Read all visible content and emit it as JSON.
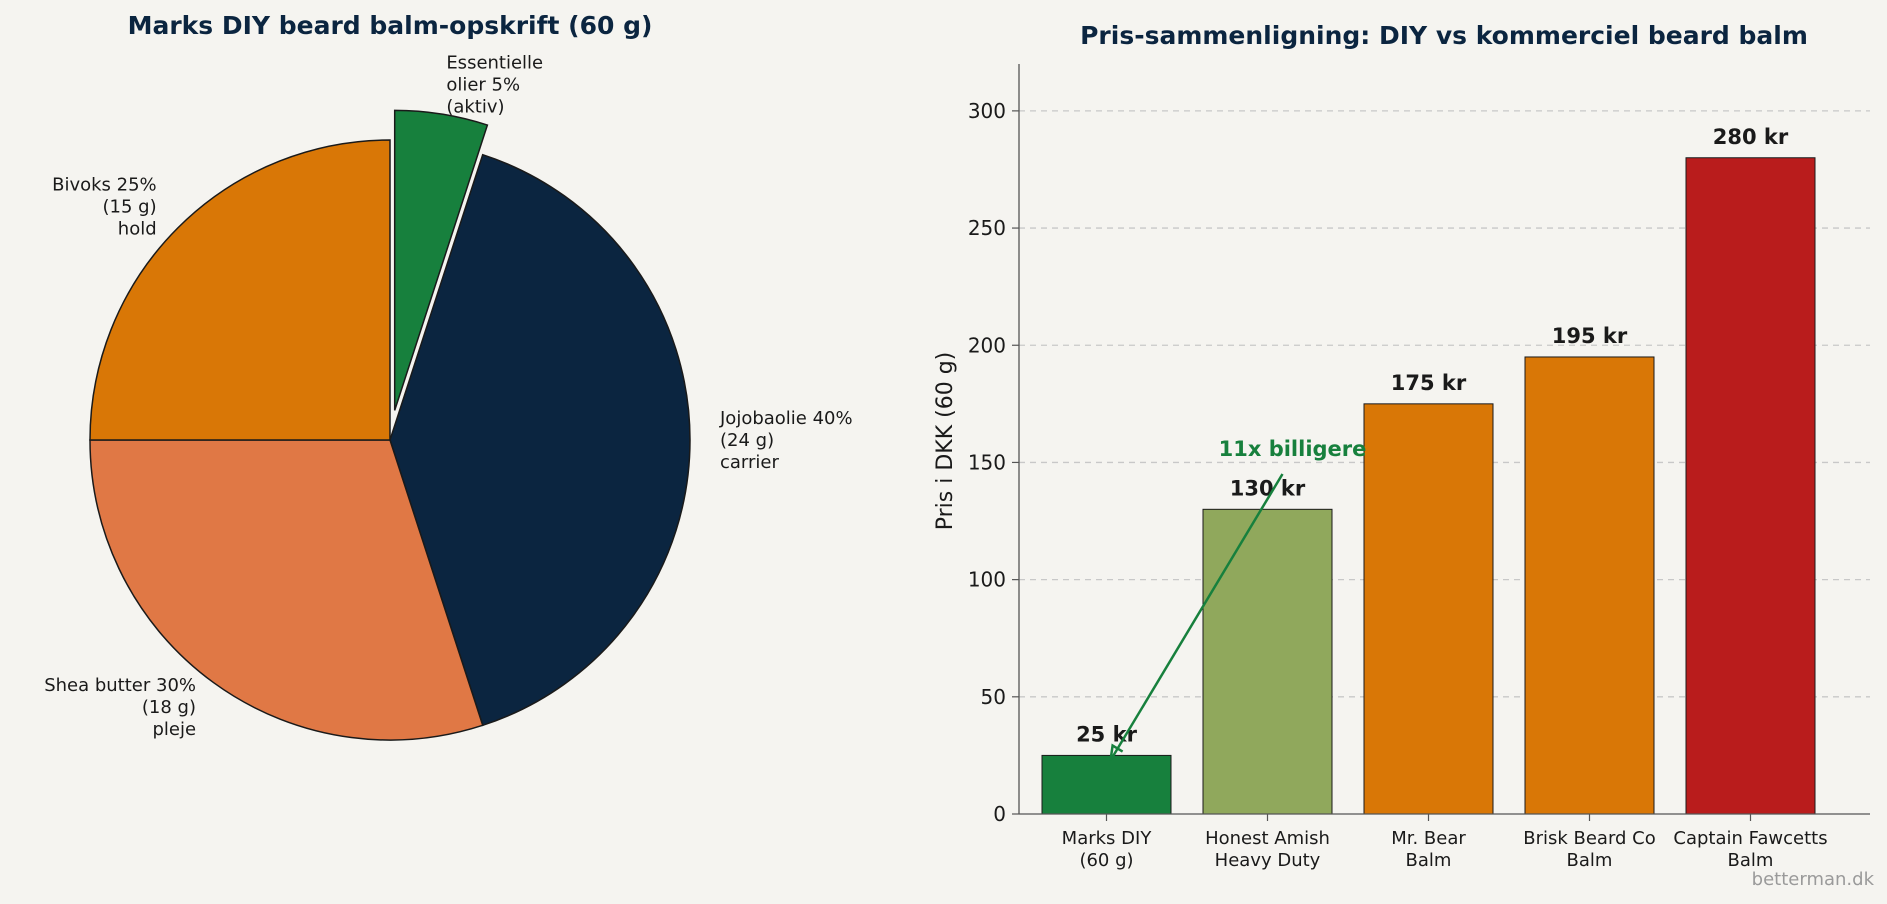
{
  "watermark": "betterman.dk",
  "chart_data": [
    {
      "type": "pie",
      "title": "Marks DIY beard balm-opskrift (60 g)",
      "start_angle_deg": 90,
      "direction": "clockwise",
      "slices": [
        {
          "name": "Essentielle olier",
          "value": 5,
          "label_lines": [
            "Essentielle",
            "olier 5%",
            "(aktiv)"
          ],
          "color": "#17803d",
          "explode": true
        },
        {
          "name": "Jojobaolie",
          "value": 40,
          "label_lines": [
            "Jojobaolie 40%",
            "(24 g)",
            "carrier"
          ],
          "color": "#0b2540",
          "explode": false
        },
        {
          "name": "Shea butter",
          "value": 30,
          "label_lines": [
            "Shea butter 30%",
            "(18 g)",
            "pleje"
          ],
          "color": "#e07845",
          "explode": false
        },
        {
          "name": "Bivoks",
          "value": 25,
          "label_lines": [
            "Bivoks 25%",
            "(15 g)",
            "hold"
          ],
          "color": "#d97706",
          "explode": false
        }
      ]
    },
    {
      "type": "bar",
      "title": "Pris-sammenligning: DIY vs kommerciel beard balm",
      "ylabel": "Pris i DKK (60 g)",
      "xlabel": "",
      "ylim": [
        0,
        320
      ],
      "yticks": [
        0,
        50,
        100,
        150,
        200,
        250,
        300
      ],
      "grid": "y-dashed",
      "categories": [
        [
          "Marks DIY",
          "(60 g)"
        ],
        [
          "Honest Amish",
          "Heavy Duty"
        ],
        [
          "Mr. Bear",
          "Balm"
        ],
        [
          "Brisk Beard Co",
          "Balm"
        ],
        [
          "Captain Fawcetts",
          "Balm"
        ]
      ],
      "values": [
        25,
        130,
        175,
        195,
        280
      ],
      "value_labels": [
        "25 kr",
        "130 kr",
        "175 kr",
        "195 kr",
        "280 kr"
      ],
      "colors": [
        "#17803d",
        "#90a85c",
        "#d97706",
        "#d97706",
        "#b91c1c"
      ],
      "annotation": {
        "text": "11x billigere",
        "points_to_category": 0,
        "color": "#17803d"
      }
    }
  ]
}
